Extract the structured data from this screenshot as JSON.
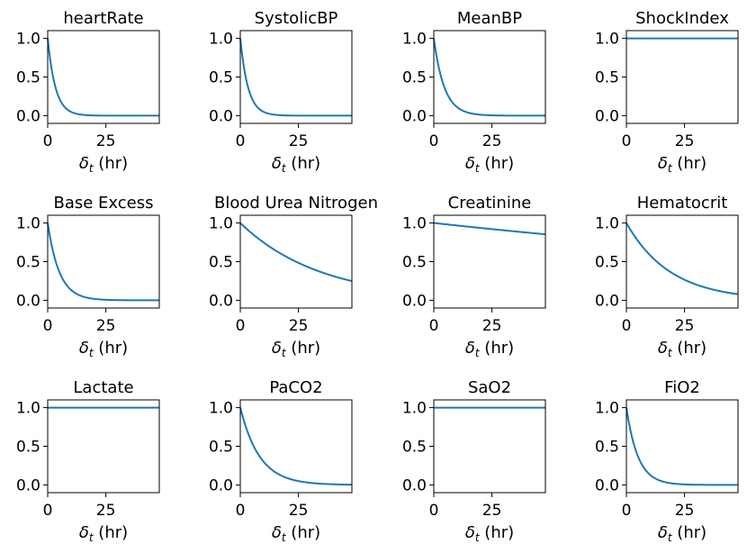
{
  "chart_data": [
    {
      "type": "line",
      "title": "heartRate",
      "xlabel_symbol": "δ",
      "xlabel_sub": "t",
      "xlabel_unit": " (hr)",
      "xlim": [
        0,
        48
      ],
      "ylim": [
        -0.1,
        1.1
      ],
      "xticks": [
        "0",
        "25"
      ],
      "yticks": [
        "0.0",
        "0.5",
        "1.0"
      ],
      "decay_per_hr": 0.3,
      "series_color": "#1f77b4"
    },
    {
      "type": "line",
      "title": "SystolicBP",
      "xlabel_symbol": "δ",
      "xlabel_sub": "t",
      "xlabel_unit": " (hr)",
      "xlim": [
        0,
        48
      ],
      "ylim": [
        -0.1,
        1.1
      ],
      "xticks": [
        "0",
        "25"
      ],
      "yticks": [
        "0.0",
        "0.5",
        "1.0"
      ],
      "decay_per_hr": 0.3,
      "series_color": "#1f77b4"
    },
    {
      "type": "line",
      "title": "MeanBP",
      "xlabel_symbol": "δ",
      "xlabel_sub": "t",
      "xlabel_unit": " (hr)",
      "xlim": [
        0,
        48
      ],
      "ylim": [
        -0.1,
        1.1
      ],
      "xticks": [
        "0",
        "25"
      ],
      "yticks": [
        "0.0",
        "0.5",
        "1.0"
      ],
      "decay_per_hr": 0.22,
      "series_color": "#1f77b4"
    },
    {
      "type": "line",
      "title": "ShockIndex",
      "xlabel_symbol": "δ",
      "xlabel_sub": "t",
      "xlabel_unit": " (hr)",
      "xlim": [
        0,
        48
      ],
      "ylim": [
        -0.1,
        1.1
      ],
      "xticks": [
        "0",
        "25"
      ],
      "yticks": [
        "0.0",
        "0.5",
        "1.0"
      ],
      "decay_per_hr": 0.0,
      "series_color": "#1f77b4"
    },
    {
      "type": "line",
      "title": "Base Excess",
      "xlabel_symbol": "δ",
      "xlabel_sub": "t",
      "xlabel_unit": " (hr)",
      "xlim": [
        0,
        48
      ],
      "ylim": [
        -0.1,
        1.1
      ],
      "xticks": [
        "0",
        "25"
      ],
      "yticks": [
        "0.0",
        "0.5",
        "1.0"
      ],
      "decay_per_hr": 0.2,
      "series_color": "#1f77b4"
    },
    {
      "type": "line",
      "title": "Blood Urea Nitrogen",
      "xlabel_symbol": "δ",
      "xlabel_sub": "t",
      "xlabel_unit": " (hr)",
      "xlim": [
        0,
        48
      ],
      "ylim": [
        -0.1,
        1.1
      ],
      "xticks": [
        "0",
        "25"
      ],
      "yticks": [
        "0.0",
        "0.5",
        "1.0"
      ],
      "decay_per_hr": 0.029,
      "series_color": "#1f77b4"
    },
    {
      "type": "line",
      "title": "Creatinine",
      "xlabel_symbol": "δ",
      "xlabel_sub": "t",
      "xlabel_unit": " (hr)",
      "xlim": [
        0,
        48
      ],
      "ylim": [
        -0.1,
        1.1
      ],
      "xticks": [
        "0",
        "25"
      ],
      "yticks": [
        "0.0",
        "0.5",
        "1.0"
      ],
      "decay_per_hr": 0.0033,
      "series_color": "#1f77b4"
    },
    {
      "type": "line",
      "title": "Hematocrit",
      "xlabel_symbol": "δ",
      "xlabel_sub": "t",
      "xlabel_unit": " (hr)",
      "xlim": [
        0,
        48
      ],
      "ylim": [
        -0.1,
        1.1
      ],
      "xticks": [
        "0",
        "25"
      ],
      "yticks": [
        "0.0",
        "0.5",
        "1.0"
      ],
      "decay_per_hr": 0.053,
      "series_color": "#1f77b4"
    },
    {
      "type": "line",
      "title": "Lactate",
      "xlabel_symbol": "δ",
      "xlabel_sub": "t",
      "xlabel_unit": " (hr)",
      "xlim": [
        0,
        48
      ],
      "ylim": [
        -0.1,
        1.1
      ],
      "xticks": [
        "0",
        "25"
      ],
      "yticks": [
        "0.0",
        "0.5",
        "1.0"
      ],
      "decay_per_hr": 0.0,
      "series_color": "#1f77b4"
    },
    {
      "type": "line",
      "title": "PaCO2",
      "xlabel_symbol": "δ",
      "xlabel_sub": "t",
      "xlabel_unit": " (hr)",
      "xlim": [
        0,
        48
      ],
      "ylim": [
        -0.1,
        1.1
      ],
      "xticks": [
        "0",
        "25"
      ],
      "yticks": [
        "0.0",
        "0.5",
        "1.0"
      ],
      "decay_per_hr": 0.12,
      "series_color": "#1f77b4"
    },
    {
      "type": "line",
      "title": "SaO2",
      "xlabel_symbol": "δ",
      "xlabel_sub": "t",
      "xlabel_unit": " (hr)",
      "xlim": [
        0,
        48
      ],
      "ylim": [
        -0.1,
        1.1
      ],
      "xticks": [
        "0",
        "25"
      ],
      "yticks": [
        "0.0",
        "0.5",
        "1.0"
      ],
      "decay_per_hr": 0.0,
      "series_color": "#1f77b4"
    },
    {
      "type": "line",
      "title": "FiO2",
      "xlabel_symbol": "δ",
      "xlabel_sub": "t",
      "xlabel_unit": " (hr)",
      "xlim": [
        0,
        48
      ],
      "ylim": [
        -0.1,
        1.1
      ],
      "xticks": [
        "0",
        "25"
      ],
      "yticks": [
        "0.0",
        "0.5",
        "1.0"
      ],
      "decay_per_hr": 0.2,
      "series_color": "#1f77b4"
    }
  ]
}
